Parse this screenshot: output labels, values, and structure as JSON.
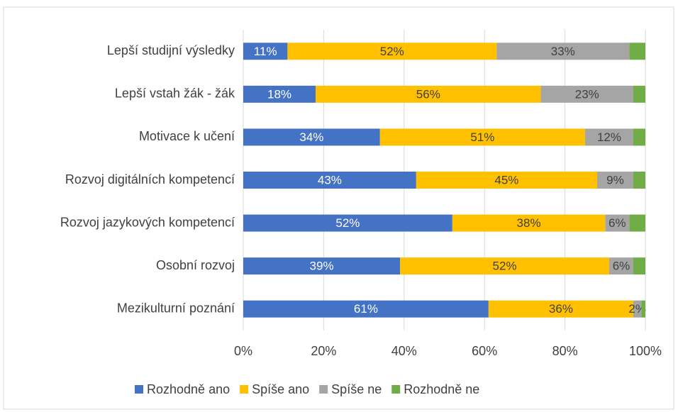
{
  "chart_data": {
    "type": "stacked-bar-horizontal",
    "categories": [
      "Lepší studijní výsledky",
      "Lepší vstah žák - žák",
      "Motivace k učení",
      "Rozvoj digitálních kompetencí",
      "Rozvoj jazykových kompetencí",
      "Osobní rozvoj",
      "Mezikulturní poznání"
    ],
    "series": [
      {
        "name": "Rozhodně ano",
        "color": "#4472c4",
        "values": [
          11,
          18,
          34,
          43,
          52,
          39,
          61
        ],
        "value_labels": [
          "11%",
          "18%",
          "34%",
          "43%",
          "52%",
          "39%",
          "61%"
        ]
      },
      {
        "name": "Spíše ano",
        "color": "#ffc000",
        "values": [
          52,
          56,
          51,
          45,
          38,
          52,
          36
        ],
        "value_labels": [
          "52%",
          "56%",
          "51%",
          "45%",
          "38%",
          "52%",
          "36%"
        ]
      },
      {
        "name": "Spíše ne",
        "color": "#a5a5a5",
        "values": [
          33,
          23,
          12,
          9,
          6,
          6,
          2
        ],
        "value_labels": [
          "33%",
          "23%",
          "12%",
          "9%",
          "6%",
          "6%",
          "2%"
        ]
      },
      {
        "name": "Rozhodně ne",
        "color": "#70ad47",
        "values": [
          4,
          3,
          3,
          3,
          4,
          3,
          1
        ]
      }
    ],
    "xlim": [
      0,
      100
    ],
    "xticks": [
      {
        "value": 0,
        "label": "0%"
      },
      {
        "value": 20,
        "label": "20%"
      },
      {
        "value": 40,
        "label": "40%"
      },
      {
        "value": 60,
        "label": "60%"
      },
      {
        "value": 80,
        "label": "80%"
      },
      {
        "value": 100,
        "label": "100%"
      }
    ],
    "grid": true,
    "legend": "bottom"
  }
}
